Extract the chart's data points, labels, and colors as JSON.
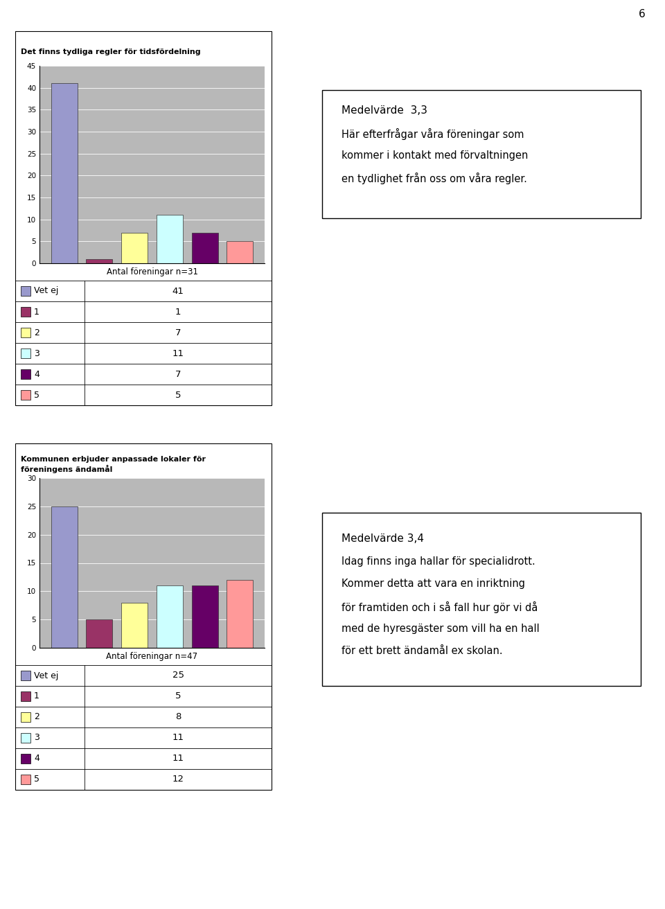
{
  "chart1": {
    "title": "Det finns tydliga regler för tidsfördelning",
    "categories": [
      "Vet ej",
      "1",
      "2",
      "3",
      "4",
      "5"
    ],
    "values": [
      41,
      1,
      7,
      11,
      7,
      5
    ],
    "colors": [
      "#9999cc",
      "#993366",
      "#ffff99",
      "#ccffff",
      "#660066",
      "#ff9999"
    ],
    "xlabel": "Antal föreningar n=31",
    "ylim": [
      0,
      45
    ],
    "yticks": [
      0,
      5,
      10,
      15,
      20,
      25,
      30,
      35,
      40,
      45
    ]
  },
  "chart2": {
    "title": "Kommunen erbjuder anpassade lokaler för\nföreningens ändamål",
    "categories": [
      "Vet ej",
      "1",
      "2",
      "3",
      "4",
      "5"
    ],
    "values": [
      25,
      5,
      8,
      11,
      11,
      12
    ],
    "colors": [
      "#9999cc",
      "#993366",
      "#ffff99",
      "#ccffff",
      "#660066",
      "#ff9999"
    ],
    "xlabel": "Antal föreningar n=47",
    "ylim": [
      0,
      30
    ],
    "yticks": [
      0,
      5,
      10,
      15,
      20,
      25,
      30
    ]
  },
  "textbox1": {
    "text": "Medelvärde  3,3\nHär efterfrågar våra föreningar som\nkommer i kontakt med förvaltningen\nen tydlighet från oss om våra regler."
  },
  "textbox2": {
    "text": "Medelvärde 3,4\nIdag finns inga hallar för specialidrott.\nKommer detta att vara en inriktning\nför framtiden och i så fall hur gör vi då\nmed de hyresgäster som vill ha en hall\nför ett brett ändamål ex skolan."
  },
  "legend_labels": [
    "Vet ej",
    "1",
    "2",
    "3",
    "4",
    "5"
  ],
  "page_number": "6",
  "background_color": "#ffffff",
  "chart_bg_color": "#b8b8b8",
  "table_grid_color": "#aaaaaa"
}
